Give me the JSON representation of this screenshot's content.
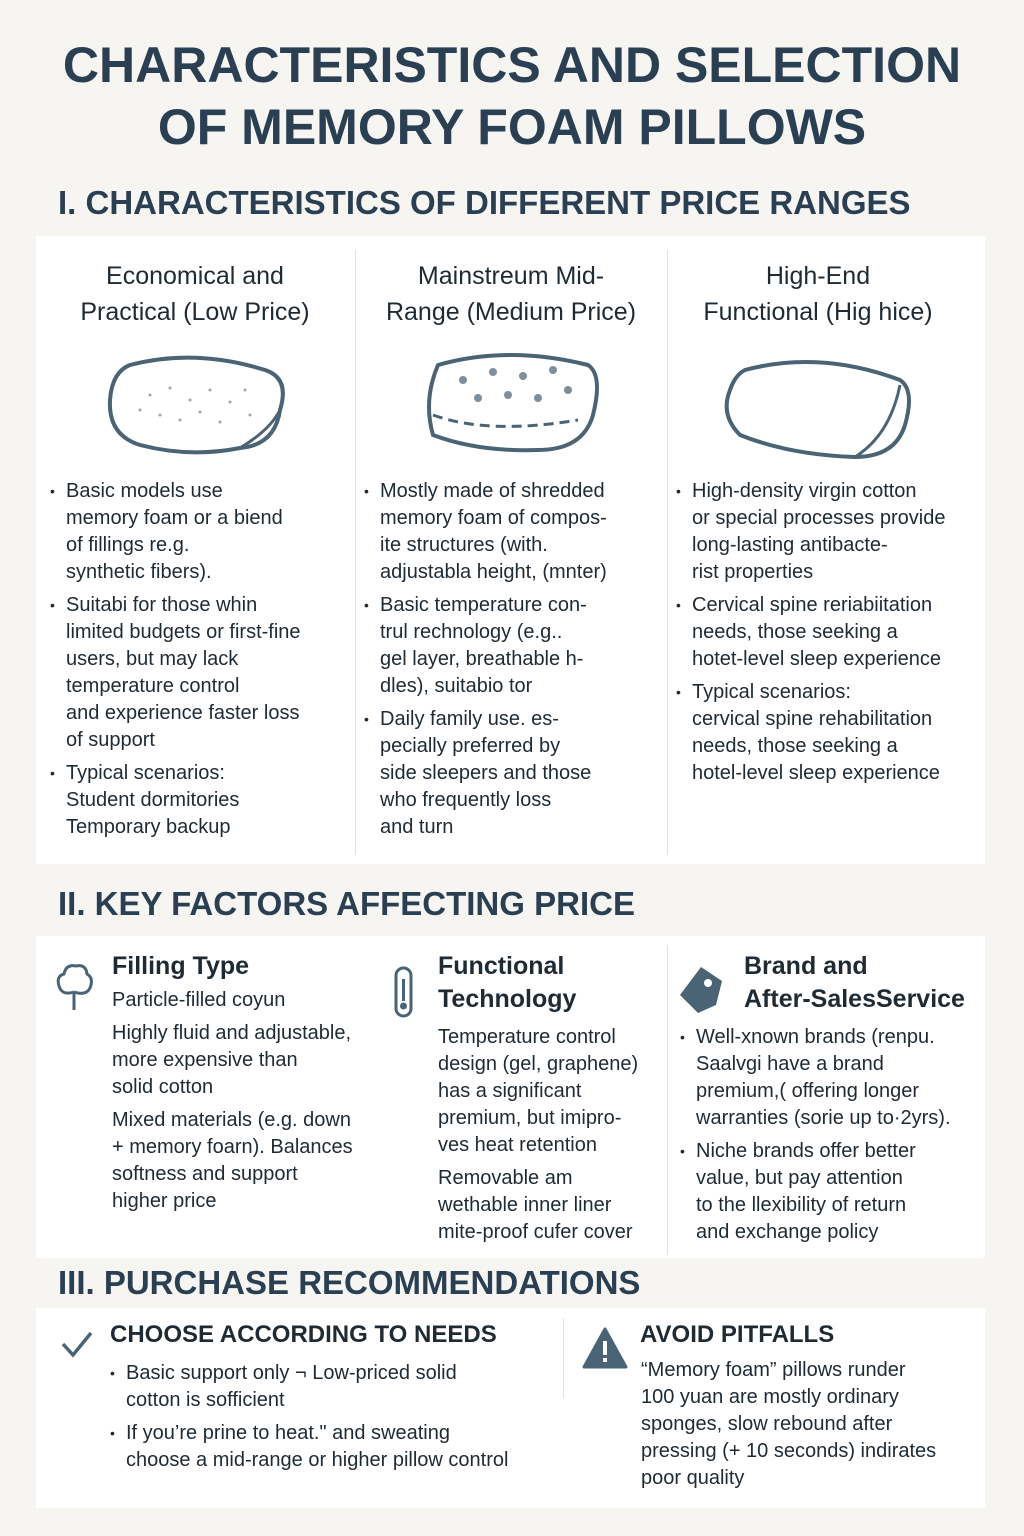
{
  "title": "CHARACTERISTICS AND SELECTION\nOF MEMORY FOAM PILLOWS",
  "section1": {
    "heading": "I. CHARACTERISTICS OF DIFFERENT PRICE RANGES",
    "columns": [
      {
        "heading": "Economical and\nPractical (Low Price)",
        "icon": "pillow-dotted-icon",
        "bullets": [
          "Basic models use\nmemory foam or a biend\nof fillings re.g.\nsynthetic fibers).",
          "Suitabi for those whin\nlimited budgets or first-fine\nusers, but may lack\ntemperature control\nand experience faster loss\nof support",
          "Typical scenarios:\nStudent dormitories\nTemporary backup"
        ]
      },
      {
        "heading": "Mainstreum Mid-\nRange (Medium Price)",
        "icon": "pillow-stitched-icon",
        "bullets": [
          "Mostly made of shredded\nmemory foam of compos-\nite structures (with.\nadjustabla height, (mnter)",
          "Basic temperature con-\ntrul rechnology (e.g..\ngel layer, breathable h-\ndles), suitabio tor",
          "Daily family use. es-\npecially preferred by\nside sleepers and those\nwho frequently loss\nand turn"
        ]
      },
      {
        "heading": "High-End\nFunctional (Hig hice)",
        "icon": "pillow-smooth-icon",
        "bullets": [
          "High-density virgin cotton\nor special processes provide\nlong-lasting antibacte-\nrist properties",
          "Cervical spine reriabiitation\nneeds, those seeking a\nhotet-level sleep experience",
          "Typical scenarios:\ncervical spine rehabilitation\nneeds, those seeking a\nhotel-level sleep experience"
        ]
      }
    ]
  },
  "section2": {
    "heading": "II. KEY FACTORS AFFECTING PRICE",
    "columns": [
      {
        "heading": "Filling Type",
        "icon": "cotton-icon",
        "paras": [
          "Particle-filled coyun",
          "Highly fluid and adjustable,\nmore expensive than\nsolid cotton",
          "Mixed materials (e.g. down\n+ memory foarn). Balances\nsoftness and support\nhigher price"
        ]
      },
      {
        "heading": "Functional\nTechnology",
        "icon": "thermometer-icon",
        "paras": [
          "Temperature control\ndesign (gel, graphene)\nhas a significant\npremium, but imipro-\nves heat retention",
          "Removable am\nwethable inner liner\nmite-proof cufer cover"
        ]
      },
      {
        "heading": "Brand and\nAfter-SalesService",
        "icon": "price-tag-icon",
        "bullets": [
          "Well-xnown brands (renpu.\nSaalvgi have a brand\npremium,( offering longer\nwarranties (sorie up to·2yrs).",
          "Niche brands offer better\nvalue, but pay attention\nto the llexibility of return\nand exchange policy"
        ]
      }
    ]
  },
  "section3": {
    "heading": "III. PURCHASE RECOMMENDATIONS",
    "choose": {
      "heading": "CHOOSE ACCORDING TO NEEDS",
      "icon": "checkmark-icon",
      "bullets": [
        "Basic support only ¬ Low-priced solid\ncotton is sofficient",
        "If you’re prine to heat.\" and sweating\nchoose a mid-range or higher pillow control"
      ]
    },
    "avoid": {
      "heading": "AVOID PITFALLS",
      "icon": "warning-icon",
      "text": "“Memory foam” pillows runder\n100 yuan are mostly ordinary\nsponges, slow rebound after\npressing (+ 10 seconds) indirates\npoor quality"
    }
  },
  "colors": {
    "heading": "#2b3f52",
    "icon": "#4a6375",
    "background": "#f6f5f2",
    "panel": "#ffffff"
  }
}
